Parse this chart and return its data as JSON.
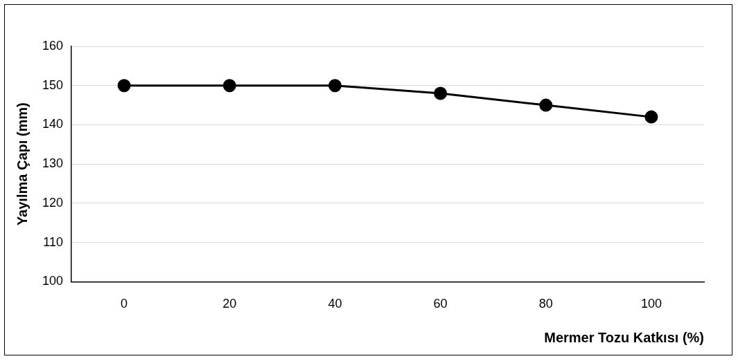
{
  "chart_data": {
    "type": "line",
    "xlabel": "Mermer Tozu Katkısı (%)",
    "ylabel": "Yayılma Çapı (mm)",
    "categories": [
      "0",
      "20",
      "40",
      "60",
      "80",
      "100"
    ],
    "series": [
      {
        "color": "#000000",
        "values": [
          150,
          150,
          150,
          148,
          145,
          142
        ]
      }
    ],
    "ylim": [
      100,
      160
    ],
    "yticks": [
      100,
      110,
      120,
      130,
      140,
      150,
      160
    ],
    "grid": "y",
    "legend": false,
    "marker": "circle",
    "line_style": "solid"
  }
}
